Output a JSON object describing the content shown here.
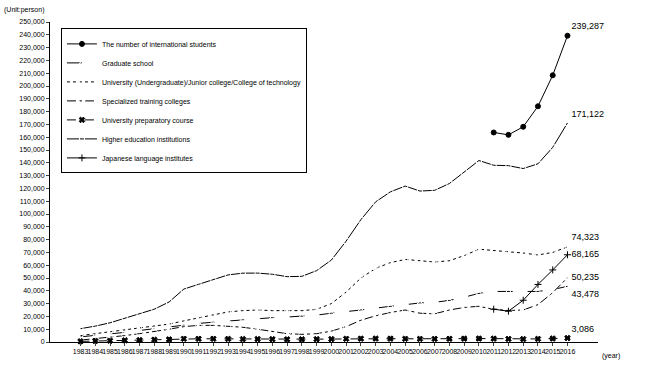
{
  "chart_data": {
    "type": "line",
    "y_label": "(Unit:person)",
    "x_label": "(year)",
    "categories": [
      "1983",
      "1984",
      "1985",
      "1986",
      "1987",
      "1988",
      "1989",
      "1990",
      "1991",
      "1992",
      "1993",
      "1994",
      "1995",
      "1996",
      "1997",
      "1998",
      "1999",
      "2000",
      "2001",
      "2002",
      "2003",
      "2004",
      "2005",
      "2006",
      "2007",
      "2008",
      "2009",
      "2010",
      "2011",
      "2012",
      "2013",
      "2014",
      "2015",
      "2016"
    ],
    "ylim": [
      0,
      250000
    ],
    "yticks": [
      0,
      {
        "value": 10000,
        "label": "10,000"
      },
      {
        "value": 20000,
        "label": "20,000"
      },
      {
        "value": 30000,
        "label": "30,000"
      },
      {
        "value": 40000,
        "label": "40,000"
      },
      {
        "value": 50000,
        "label": "50,000"
      },
      {
        "value": 60000,
        "label": "60,000"
      },
      {
        "value": 70000,
        "label": "70,000"
      },
      {
        "value": 80000,
        "label": "80,000"
      },
      {
        "value": 90000,
        "label": "90,000"
      },
      {
        "value": 100000,
        "label": "100,000"
      },
      {
        "value": 110000,
        "label": "110,000"
      },
      {
        "value": 120000,
        "label": "120,000"
      },
      {
        "value": 130000,
        "label": "130,000"
      },
      {
        "value": 140000,
        "label": "140,000"
      },
      {
        "value": 150000,
        "label": "150,000"
      },
      {
        "value": 160000,
        "label": "160,000"
      },
      {
        "value": 170000,
        "label": "170,000"
      },
      {
        "value": 180000,
        "label": "180,000"
      },
      {
        "value": 190000,
        "label": "190,000"
      },
      {
        "value": 200000,
        "label": "200,000"
      },
      {
        "value": 210000,
        "label": "210,000"
      },
      {
        "value": 220000,
        "label": "220,000"
      },
      {
        "value": 230000,
        "label": "230,000"
      },
      {
        "value": 240000,
        "label": "240,000"
      },
      {
        "value": 250000,
        "label": "250,000"
      }
    ],
    "grid": false,
    "legend": "upper left",
    "series": [
      {
        "name": "The number of international students",
        "color": "#000000",
        "marker": "circle",
        "line_style": "solid",
        "values": [
          null,
          null,
          null,
          null,
          null,
          null,
          null,
          null,
          null,
          null,
          null,
          null,
          null,
          null,
          null,
          null,
          null,
          null,
          null,
          null,
          null,
          null,
          null,
          null,
          null,
          null,
          null,
          null,
          163697,
          161848,
          168145,
          184155,
          208379,
          239287
        ],
        "value_labels": [
          null,
          null,
          null,
          null,
          null,
          null,
          null,
          null,
          null,
          null,
          null,
          null,
          null,
          null,
          null,
          null,
          null,
          null,
          null,
          null,
          null,
          null,
          null,
          null,
          null,
          null,
          null,
          null,
          null,
          null,
          null,
          null,
          null,
          "239,287"
        ]
      },
      {
        "name": "Graduate school",
        "color": "#000000",
        "marker": "triangle-up-open",
        "line_style": "longdash",
        "values": [
          4000,
          5000,
          6000,
          7500,
          9000,
          10500,
          12000,
          13500,
          14500,
          15500,
          16500,
          17500,
          18500,
          19000,
          19500,
          20000,
          21000,
          22500,
          23500,
          25000,
          26500,
          28000,
          29500,
          30500,
          31000,
          32500,
          35000,
          38000,
          39500,
          39500,
          39500,
          39500,
          41000,
          43478
        ],
        "value_labels": [
          null,
          null,
          null,
          null,
          null,
          null,
          null,
          null,
          null,
          null,
          null,
          null,
          null,
          null,
          null,
          null,
          null,
          null,
          null,
          null,
          null,
          null,
          null,
          null,
          null,
          null,
          null,
          null,
          null,
          null,
          null,
          null,
          null,
          "43,478"
        ]
      },
      {
        "name": "University (Undergraduate)/Junior college/College of technology",
        "color": "#000000",
        "marker": "circle-open",
        "line_style": "dot",
        "values": [
          5000,
          6500,
          8000,
          9500,
          10500,
          12000,
          14000,
          16500,
          19000,
          21500,
          23500,
          24500,
          25000,
          24500,
          24500,
          24500,
          25500,
          30000,
          39000,
          50000,
          57500,
          62000,
          64500,
          63500,
          62500,
          63500,
          67500,
          72500,
          71500,
          71000,
          69500,
          68000,
          70000,
          74323
        ],
        "value_labels": [
          null,
          null,
          null,
          null,
          null,
          null,
          null,
          null,
          null,
          null,
          null,
          null,
          null,
          null,
          null,
          null,
          null,
          null,
          null,
          null,
          null,
          null,
          null,
          null,
          null,
          null,
          null,
          null,
          null,
          null,
          null,
          null,
          null,
          "74,323"
        ]
      },
      {
        "name": "Specialized training colleges",
        "color": "#000000",
        "marker": "diamond-open",
        "line_style": "dashdot",
        "values": [
          1500,
          2500,
          3500,
          5000,
          6500,
          8000,
          10000,
          12000,
          13000,
          13000,
          12500,
          11500,
          10000,
          8000,
          6500,
          6000,
          6500,
          8500,
          12000,
          17000,
          20500,
          23000,
          25000,
          22500,
          22000,
          25000,
          27000,
          27900,
          25500,
          24600,
          25000,
          29200,
          38500,
          50235
        ],
        "value_labels": [
          null,
          null,
          null,
          null,
          null,
          null,
          null,
          null,
          null,
          null,
          null,
          null,
          null,
          null,
          null,
          null,
          null,
          null,
          null,
          null,
          null,
          null,
          null,
          null,
          null,
          null,
          null,
          null,
          null,
          null,
          null,
          null,
          null,
          "50,235"
        ]
      },
      {
        "name": "University preparatory course",
        "color": "#000000",
        "marker": "x",
        "line_style": "dash",
        "values": [
          500,
          800,
          1000,
          1300,
          1500,
          1800,
          2000,
          2500,
          2500,
          2500,
          2400,
          2300,
          2300,
          2200,
          2100,
          2100,
          2200,
          2300,
          2500,
          2600,
          2700,
          2600,
          2500,
          2400,
          2400,
          2500,
          2600,
          2700,
          2600,
          2400,
          2300,
          2400,
          2700,
          3086
        ],
        "value_labels": [
          null,
          null,
          null,
          null,
          null,
          null,
          null,
          null,
          null,
          null,
          null,
          null,
          null,
          null,
          null,
          null,
          null,
          null,
          null,
          null,
          null,
          null,
          null,
          null,
          null,
          null,
          null,
          null,
          null,
          null,
          null,
          null,
          null,
          "3,086"
        ]
      },
      {
        "name": "Higher education institutions",
        "color": "#000000",
        "marker": "square-open",
        "line_style": "solid",
        "values": [
          10428,
          12410,
          15009,
          18631,
          22154,
          25643,
          31251,
          41347,
          45066,
          48561,
          52405,
          53787,
          53847,
          52921,
          51047,
          51298,
          55755,
          64011,
          78812,
          95550,
          109508,
          117302,
          121812,
          117927,
          118498,
          123829,
          132720,
          141774,
          138075,
          137756,
          135519,
          139185,
          152062,
          171122
        ],
        "value_labels": [
          null,
          null,
          null,
          null,
          null,
          null,
          null,
          null,
          null,
          null,
          null,
          null,
          null,
          null,
          null,
          null,
          null,
          null,
          null,
          null,
          null,
          null,
          null,
          null,
          null,
          null,
          null,
          null,
          null,
          null,
          null,
          null,
          null,
          "171,122"
        ]
      },
      {
        "name": "Japanese language institutes",
        "color": "#000000",
        "marker": "cross-thin",
        "line_style": "solid",
        "values": [
          null,
          null,
          null,
          null,
          null,
          null,
          null,
          null,
          null,
          null,
          null,
          null,
          null,
          null,
          null,
          null,
          null,
          null,
          null,
          null,
          null,
          null,
          null,
          null,
          null,
          null,
          null,
          null,
          25622,
          24092,
          32626,
          44970,
          56317,
          68165
        ],
        "value_labels": [
          null,
          null,
          null,
          null,
          null,
          null,
          null,
          null,
          null,
          null,
          null,
          null,
          null,
          null,
          null,
          null,
          null,
          null,
          null,
          null,
          null,
          null,
          null,
          null,
          null,
          null,
          null,
          null,
          null,
          null,
          null,
          null,
          null,
          "68,165"
        ]
      }
    ]
  }
}
